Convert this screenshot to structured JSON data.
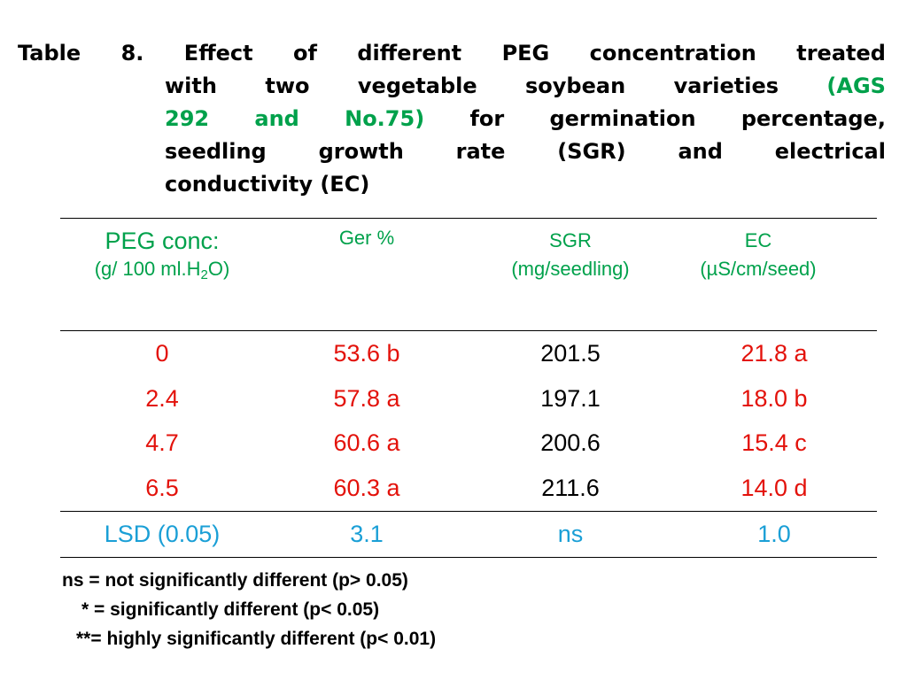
{
  "title": {
    "line1": [
      "Table",
      "8.",
      "Effect",
      "of",
      "different",
      "PEG",
      "concentration",
      "treated"
    ],
    "line2_words": [
      "with",
      "two",
      "vegetable",
      "soybean",
      "varieties"
    ],
    "line2_green": "(AGS",
    "line3_green": [
      "292",
      "and",
      "No.75)"
    ],
    "line3_words": [
      "for",
      "germination",
      "percentage,"
    ],
    "line4": [
      "seedling",
      "growth",
      "rate",
      "(SGR)",
      "and",
      "electrical"
    ],
    "line5": "conductivity (EC)"
  },
  "header": {
    "peg_label": "PEG conc:",
    "peg_unit_prefix": "(g/ 100 ml.H",
    "peg_unit_sub": "2",
    "peg_unit_suffix": "O)",
    "ger": "Ger %",
    "sgr_label": "SGR",
    "sgr_unit": "(mg/seedling)",
    "ec_label": "EC",
    "ec_unit": "(µS/cm/seed)"
  },
  "rows": [
    {
      "peg": "0",
      "ger": "53.6 b",
      "sgr": "201.5",
      "ec": "21.8 a"
    },
    {
      "peg": "2.4",
      "ger": "57.8 a",
      "sgr": "197.1",
      "ec": "18.0 b"
    },
    {
      "peg": "4.7",
      "ger": "60.6 a",
      "sgr": "200.6",
      "ec": "15.4 c"
    },
    {
      "peg": "6.5",
      "ger": "60.3 a",
      "sgr": "211.6",
      "ec": "14.0 d"
    }
  ],
  "lsd": {
    "label": "LSD (0.05)",
    "ger": "3.1",
    "sgr": "ns",
    "ec": "1.0"
  },
  "notes": [
    "ns = not significantly different (p> 0.05)",
    "* = significantly different (p< 0.05)",
    "**= highly significantly different (p< 0.01)"
  ],
  "colors": {
    "green": "#00a14b",
    "red": "#e3120b",
    "blue": "#1a9fd6"
  }
}
